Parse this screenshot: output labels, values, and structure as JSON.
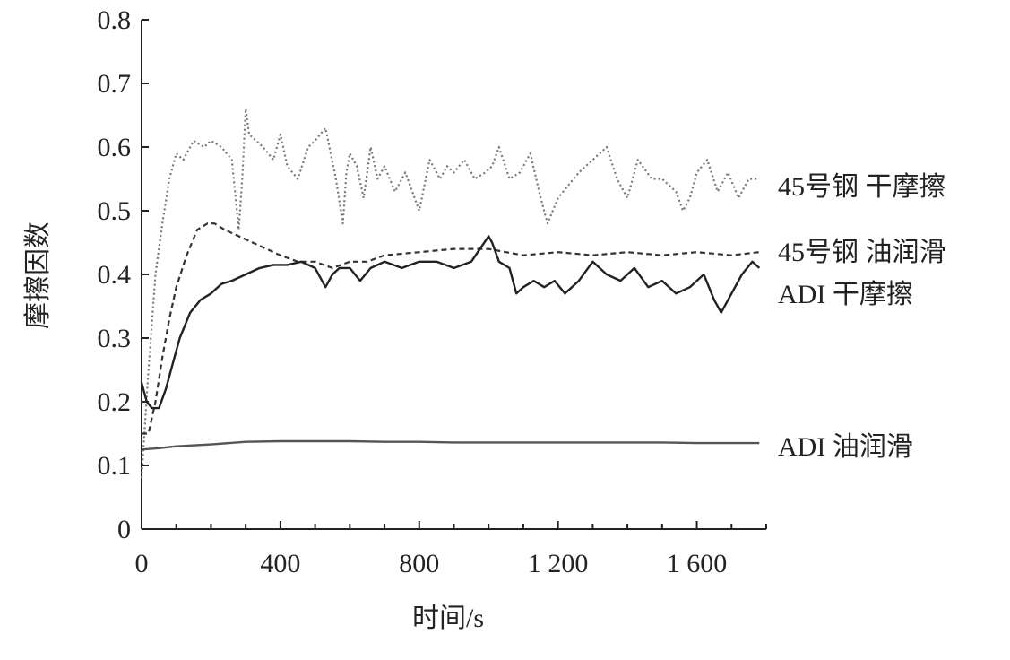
{
  "chart_data": {
    "type": "line",
    "xlabel": "时间/s",
    "ylabel": "摩擦因数",
    "xlim": [
      0,
      1800
    ],
    "ylim": [
      0,
      0.8
    ],
    "x_ticks": [
      0,
      400,
      800,
      1200,
      1600
    ],
    "x_tick_labels": [
      "0",
      "400",
      "800",
      "1 200",
      "1 600"
    ],
    "y_ticks": [
      0,
      0.1,
      0.2,
      0.3,
      0.4,
      0.5,
      0.6,
      0.7,
      0.8
    ],
    "y_tick_labels": [
      "0",
      "0.1",
      "0.2",
      "0.3",
      "0.4",
      "0.5",
      "0.6",
      "0.7",
      "0.8"
    ],
    "grid": false,
    "legend": "direct labels at right end of each curve",
    "series": [
      {
        "name": "45号钢  干摩擦",
        "style": "dotted",
        "color": "#777777",
        "x": [
          0,
          20,
          40,
          60,
          80,
          100,
          120,
          150,
          180,
          200,
          230,
          260,
          280,
          290,
          300,
          310,
          330,
          350,
          380,
          400,
          420,
          450,
          480,
          500,
          530,
          560,
          580,
          590,
          600,
          620,
          640,
          660,
          680,
          700,
          730,
          760,
          800,
          830,
          860,
          880,
          900,
          930,
          960,
          990,
          1010,
          1030,
          1060,
          1090,
          1120,
          1150,
          1170,
          1200,
          1230,
          1260,
          1300,
          1340,
          1370,
          1400,
          1430,
          1470,
          1500,
          1540,
          1560,
          1580,
          1600,
          1630,
          1660,
          1690,
          1720,
          1750,
          1780
        ],
        "y": [
          0.08,
          0.25,
          0.4,
          0.48,
          0.55,
          0.59,
          0.58,
          0.61,
          0.6,
          0.61,
          0.6,
          0.58,
          0.47,
          0.55,
          0.66,
          0.62,
          0.61,
          0.6,
          0.58,
          0.62,
          0.57,
          0.55,
          0.6,
          0.61,
          0.63,
          0.55,
          0.48,
          0.56,
          0.59,
          0.57,
          0.52,
          0.6,
          0.55,
          0.57,
          0.53,
          0.56,
          0.5,
          0.58,
          0.55,
          0.57,
          0.56,
          0.58,
          0.55,
          0.56,
          0.57,
          0.6,
          0.55,
          0.56,
          0.59,
          0.52,
          0.48,
          0.52,
          0.54,
          0.56,
          0.58,
          0.6,
          0.55,
          0.52,
          0.58,
          0.55,
          0.55,
          0.53,
          0.5,
          0.52,
          0.56,
          0.58,
          0.53,
          0.56,
          0.52,
          0.55,
          0.55
        ]
      },
      {
        "name": "45号钢  油润滑",
        "style": "dashed",
        "color": "#333333",
        "x": [
          0,
          20,
          40,
          60,
          80,
          100,
          130,
          160,
          190,
          210,
          240,
          280,
          320,
          360,
          400,
          450,
          500,
          550,
          600,
          650,
          700,
          800,
          900,
          950,
          1000,
          1050,
          1100,
          1200,
          1300,
          1400,
          1500,
          1600,
          1700,
          1780
        ],
        "y": [
          0.15,
          0.15,
          0.2,
          0.27,
          0.33,
          0.38,
          0.43,
          0.47,
          0.48,
          0.48,
          0.47,
          0.46,
          0.45,
          0.44,
          0.43,
          0.42,
          0.42,
          0.41,
          0.42,
          0.42,
          0.43,
          0.435,
          0.44,
          0.44,
          0.44,
          0.435,
          0.43,
          0.435,
          0.43,
          0.435,
          0.43,
          0.435,
          0.43,
          0.435
        ]
      },
      {
        "name": "ADI  干摩擦",
        "style": "solid",
        "color": "#222222",
        "x": [
          0,
          15,
          30,
          50,
          70,
          90,
          110,
          140,
          170,
          200,
          230,
          260,
          300,
          340,
          380,
          420,
          460,
          500,
          530,
          550,
          570,
          600,
          630,
          660,
          700,
          750,
          800,
          850,
          900,
          950,
          1000,
          1010,
          1030,
          1060,
          1080,
          1100,
          1130,
          1160,
          1190,
          1220,
          1260,
          1300,
          1340,
          1380,
          1420,
          1460,
          1500,
          1540,
          1580,
          1620,
          1650,
          1670,
          1700,
          1730,
          1760,
          1780
        ],
        "y": [
          0.23,
          0.2,
          0.19,
          0.19,
          0.22,
          0.26,
          0.3,
          0.34,
          0.36,
          0.37,
          0.385,
          0.39,
          0.4,
          0.41,
          0.415,
          0.415,
          0.42,
          0.41,
          0.38,
          0.4,
          0.41,
          0.41,
          0.39,
          0.41,
          0.42,
          0.41,
          0.42,
          0.42,
          0.41,
          0.42,
          0.46,
          0.45,
          0.42,
          0.41,
          0.37,
          0.38,
          0.39,
          0.38,
          0.39,
          0.37,
          0.39,
          0.42,
          0.4,
          0.39,
          0.41,
          0.38,
          0.39,
          0.37,
          0.38,
          0.4,
          0.36,
          0.34,
          0.37,
          0.4,
          0.42,
          0.41
        ]
      },
      {
        "name": "ADI  油润滑",
        "style": "solid",
        "color": "#555555",
        "x": [
          0,
          50,
          100,
          200,
          300,
          400,
          500,
          600,
          700,
          800,
          900,
          1000,
          1100,
          1200,
          1300,
          1400,
          1500,
          1600,
          1700,
          1780
        ],
        "y": [
          0.125,
          0.127,
          0.13,
          0.133,
          0.137,
          0.138,
          0.138,
          0.138,
          0.137,
          0.137,
          0.136,
          0.136,
          0.136,
          0.136,
          0.136,
          0.136,
          0.136,
          0.135,
          0.135,
          0.135
        ]
      }
    ]
  }
}
